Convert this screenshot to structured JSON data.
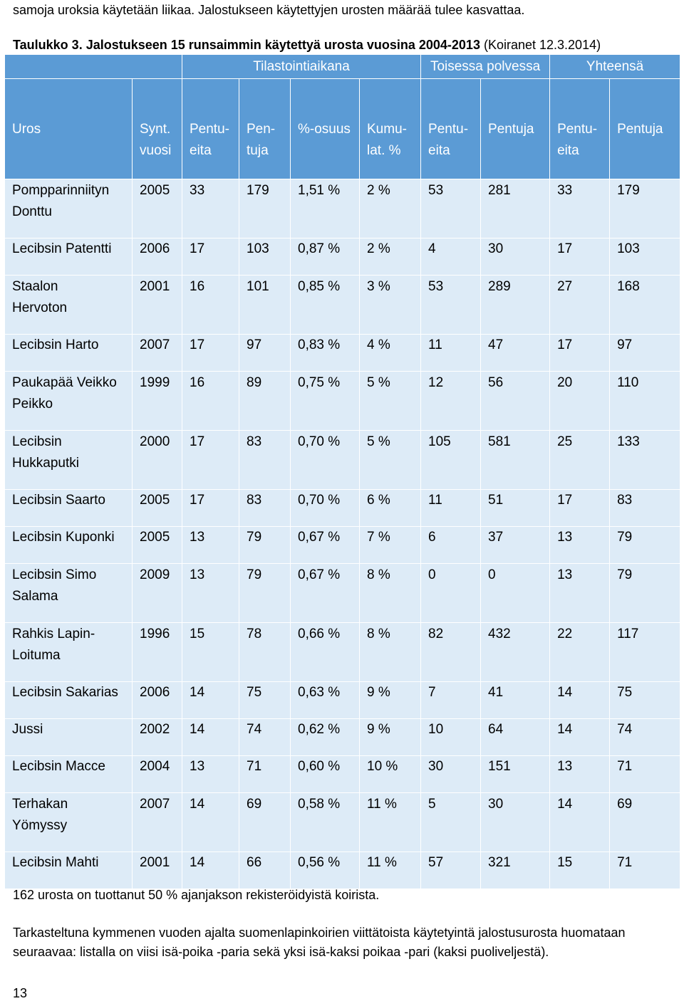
{
  "intro_text": "samoja uroksia käytetään liikaa. Jalostukseen käytettyjen urosten määrää tulee kasvattaa.",
  "caption": {
    "label": "Taulukko 3. Jalostukseen 15 runsaimmin käytettyä urosta vuosina 2004-2013",
    "source": " (Koiranet 12.3.2014)"
  },
  "table": {
    "group_headers": [
      "",
      "Tilastointiaikana",
      "Toisessa polvessa",
      "Yhteensä"
    ],
    "columns": [
      "Uros",
      "Synt.\nvuosi",
      "Pentu-\neita",
      "Pen-\ntuja",
      "%-osuus",
      "Kumu-\nlat. %",
      "Pentu-\neita",
      "Pentuja",
      "Pentu-\neita",
      "Pentuja"
    ],
    "rows": [
      [
        "Pompparinniityn\nDonttu",
        "2005",
        "33",
        "179",
        "1,51 %",
        "2 %",
        "53",
        "281",
        "33",
        "179"
      ],
      [
        "Lecibsin Patentti",
        "2006",
        "17",
        "103",
        "0,87 %",
        "2 %",
        "4",
        "30",
        "17",
        "103"
      ],
      [
        "Staalon\nHervoton",
        "2001",
        "16",
        "101",
        "0,85 %",
        "3 %",
        "53",
        "289",
        "27",
        "168"
      ],
      [
        "Lecibsin Harto",
        "2007",
        "17",
        "97",
        "0,83 %",
        "4 %",
        "11",
        "47",
        "17",
        "97"
      ],
      [
        "Paukapää Veikko\nPeikko",
        "1999",
        "16",
        "89",
        "0,75 %",
        "5 %",
        "12",
        "56",
        "20",
        "110"
      ],
      [
        "Lecibsin\nHukkaputki",
        "2000",
        "17",
        "83",
        "0,70 %",
        "5 %",
        "105",
        "581",
        "25",
        "133"
      ],
      [
        "Lecibsin Saarto",
        "2005",
        "17",
        "83",
        "0,70 %",
        "6 %",
        "11",
        "51",
        "17",
        "83"
      ],
      [
        "Lecibsin Kuponki",
        "2005",
        "13",
        "79",
        "0,67 %",
        "7 %",
        "6",
        "37",
        "13",
        "79"
      ],
      [
        "Lecibsin Simo\nSalama",
        "2009",
        "13",
        "79",
        "0,67 %",
        "8 %",
        "0",
        "0",
        "13",
        "79"
      ],
      [
        "Rahkis Lapin-\nLoituma",
        "1996",
        "15",
        "78",
        "0,66 %",
        "8 %",
        "82",
        "432",
        "22",
        "117"
      ],
      [
        "Lecibsin Sakarias",
        "2006",
        "14",
        "75",
        "0,63 %",
        "9 %",
        "7",
        "41",
        "14",
        "75"
      ],
      [
        "Jussi",
        "2002",
        "14",
        "74",
        "0,62 %",
        "9 %",
        "10",
        "64",
        "14",
        "74"
      ],
      [
        "Lecibsin Macce",
        "2004",
        "13",
        "71",
        "0,60 %",
        "10 %",
        "30",
        "151",
        "13",
        "71"
      ],
      [
        "Terhakan\nYömyssy",
        "2007",
        "14",
        "69",
        "0,58 %",
        "11 %",
        "5",
        "30",
        "14",
        "69"
      ],
      [
        "Lecibsin Mahti",
        "2001",
        "14",
        "66",
        "0,56 %",
        "11 %",
        "57",
        "321",
        "15",
        "71"
      ]
    ]
  },
  "note_1": "162 urosta on tuottanut 50 % ajanjakson rekisteröidyistä koirista.",
  "note_2": "Tarkasteltuna kymmenen vuoden ajalta suomenlapinkoirien viittätoista käytetyintä jalostusurosta huomataan seuraavaa: listalla on viisi isä-poika -paria sekä yksi isä-kaksi poikaa -pari (kaksi puoliveljestä).",
  "page_number": "13",
  "colors": {
    "header_bg": "#5b9bd5",
    "row_bg": "#ddebf7"
  }
}
